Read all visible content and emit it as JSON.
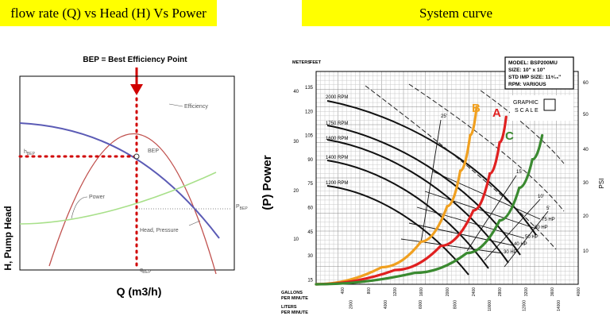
{
  "banners": {
    "left_title": "flow rate (Q) vs Head (H) Vs Power",
    "right_title": "System curve"
  },
  "colors": {
    "banner": "#ffff00",
    "efficiency": "#c0504d",
    "head": "#5b5bb5",
    "power": "#a8e08a",
    "marker": "#d00000",
    "curve_a": "#e02020",
    "curve_b": "#f0a020",
    "curve_c": "#3a8a30"
  },
  "chart_data": [
    {
      "type": "line",
      "title": "BEP = Best Efficiency Point",
      "xlabel": "Q (m3/h)",
      "ylabel": "H, Pump Head",
      "right_label": "(P) Power",
      "grid": false,
      "series": [
        {
          "name": "Efficiency",
          "x": [
            0,
            0.2,
            0.4,
            0.6,
            0.8,
            1.0
          ],
          "y": [
            0.05,
            0.62,
            1.0,
            0.62,
            0.05,
            -0.6
          ]
        },
        {
          "name": "Head, Pressure",
          "x": [
            0,
            0.2,
            0.4,
            0.6,
            0.8,
            1.0
          ],
          "y": [
            0.86,
            0.83,
            0.73,
            0.57,
            0.36,
            0.1
          ]
        },
        {
          "name": "Power",
          "x": [
            0,
            0.2,
            0.4,
            0.6,
            0.8,
            1.0
          ],
          "y": [
            0.22,
            0.24,
            0.29,
            0.35,
            0.42,
            0.49
          ]
        }
      ],
      "labels": {
        "efficiency": "Efficiency",
        "bep": "BEP",
        "power": "Power",
        "head": "Head, Pressure",
        "h_bep": "h",
        "h_bep_sub": "BEP",
        "p_bep": "P",
        "p_bep_sub": "BEP",
        "q_bep": "q",
        "q_bep_sub": "BEP"
      }
    },
    {
      "type": "line",
      "title": "",
      "info": {
        "model": "MODEL: BSP200MU",
        "size": "SIZE: 10\" x 10\"",
        "imp": "STD IMP SIZE: 11⁹⁄₁₆\"",
        "rpm": "RPM: VARIOUS"
      },
      "graphic_scale": {
        "line1": "GRAPHIC",
        "line2": "S C A L E"
      },
      "y_units": {
        "meters": "METERS",
        "feet": "FEET"
      },
      "x_axis_labels": {
        "gpm_line1": "GALLONS",
        "gpm_line2": "PER MINUTE",
        "lpm_line1": "LITERS",
        "lpm_line2": "PER MINUTE"
      },
      "right_axis_label": "PSI",
      "meters_ticks": [
        "40",
        "30",
        "20",
        "10"
      ],
      "feet_ticks": [
        "135",
        "120",
        "105",
        "90",
        "75",
        "60",
        "45",
        "30",
        "15"
      ],
      "psi_ticks": [
        "60",
        "50",
        "40",
        "30",
        "20",
        "10"
      ],
      "gpm_ticks": [
        "400",
        "800",
        "1200",
        "1600",
        "2000",
        "2400",
        "2800",
        "3200",
        "3600",
        "4000"
      ],
      "lpm_ticks": [
        "2000",
        "4000",
        "6000",
        "8000",
        "10000",
        "12000",
        "14000"
      ],
      "rpm_labels": [
        "2000 RPM",
        "1750 RPM",
        "1600 RPM",
        "1400 RPM",
        "1200 RPM"
      ],
      "hp_labels": [
        "75 HP",
        "60 HP",
        "50 HP",
        "40 HP",
        "30 HP"
      ],
      "suction_labels": [
        "25'",
        "15'",
        "10'",
        "5'"
      ],
      "series": [
        {
          "name": "B",
          "x": [
            0,
            1000,
            1600,
            2000,
            2200,
            2350,
            2450
          ],
          "y": [
            0,
            12,
            30,
            55,
            80,
            105,
            125
          ]
        },
        {
          "name": "A",
          "x": [
            0,
            1200,
            1900,
            2400,
            2650,
            2800,
            2900
          ],
          "y": [
            0,
            10,
            27,
            52,
            78,
            100,
            118
          ]
        },
        {
          "name": "C",
          "x": [
            0,
            1500,
            2300,
            2800,
            3100,
            3300,
            3450
          ],
          "y": [
            0,
            8,
            22,
            45,
            68,
            88,
            105
          ]
        }
      ]
    }
  ]
}
